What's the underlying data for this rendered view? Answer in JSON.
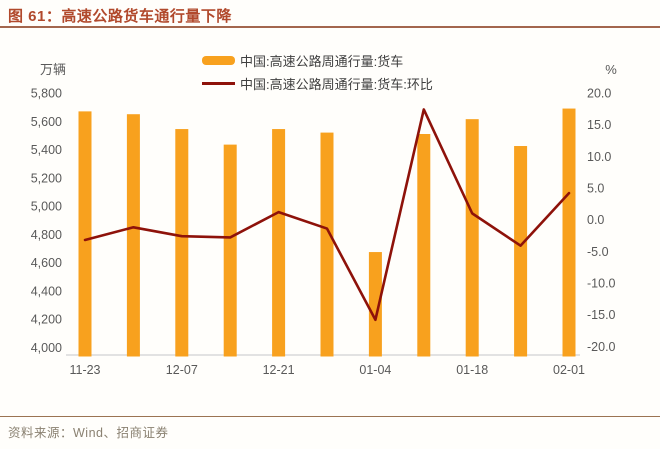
{
  "header": {
    "title": "图 61：高速公路货车通行量下降"
  },
  "footer": {
    "source": "资料来源：Wind、招商证券"
  },
  "legend": [
    {
      "label": "中国:高速公路周通行量:货车",
      "type": "bar"
    },
    {
      "label": "中国:高速公路周通行量:货车:环比",
      "type": "line"
    }
  ],
  "colors": {
    "title_text": "#b1492c",
    "title_rule": "#a3664d",
    "bar": "#F8A11E",
    "line": "#8E120A",
    "axis_text": "#595959",
    "axis_line": "#d9d9d9",
    "legend_text": "#3f3f3f",
    "footer_rule": "#9b7352",
    "footer_text": "#8a8171",
    "background": "#fffefb"
  },
  "chart_data": {
    "type": "combo-bar-line",
    "title": "高速公路货车通行量下降",
    "grid": false,
    "legend_position": "top-center",
    "n_points": 11,
    "x_tick_labels": [
      "11-23",
      "12-07",
      "12-21",
      "01-04",
      "01-18",
      "02-01"
    ],
    "x_tick_point_indexes": [
      0,
      2,
      4,
      6,
      8,
      10
    ],
    "left_axis": {
      "unit": "万辆",
      "min": 4000,
      "max": 5800,
      "tick_labels": [
        "5,800",
        "5,600",
        "5,400",
        "5,200",
        "5,000",
        "4,800",
        "4,600",
        "4,400",
        "4,200",
        "4,000"
      ]
    },
    "right_axis": {
      "unit": "%",
      "min": -20,
      "max": 20,
      "tick_labels": [
        "20.0",
        "15.0",
        "10.0",
        "5.0",
        "0.0",
        "-5.0",
        "-10.0",
        "-15.0",
        "-20.0"
      ]
    },
    "series": [
      {
        "name": "中国:高速公路周通行量:货车",
        "type": "bar",
        "axis": "left",
        "values": [
          5670,
          5650,
          5545,
          5435,
          5545,
          5520,
          4675,
          5510,
          5615,
          5425,
          5690
        ]
      },
      {
        "name": "中国:高速公路周通行量:货车:环比",
        "type": "line",
        "axis": "right",
        "values": [
          -3.2,
          -1.2,
          -2.6,
          -2.8,
          1.2,
          -1.4,
          -15.8,
          17.4,
          1.0,
          -4.1,
          4.2
        ]
      }
    ]
  }
}
